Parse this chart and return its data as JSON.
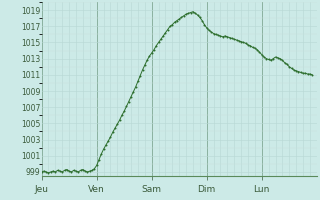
{
  "background_color": "#cceae7",
  "plot_bg_color": "#cceae7",
  "line_color": "#2d6e2d",
  "ylim": [
    998.5,
    1020.0
  ],
  "yticks": [
    999,
    1001,
    1003,
    1005,
    1007,
    1009,
    1011,
    1013,
    1015,
    1017,
    1019
  ],
  "day_labels": [
    "Jeu",
    "Ven",
    "Sam",
    "Dim",
    "Lun"
  ],
  "day_positions": [
    0,
    24,
    48,
    72,
    96
  ],
  "total_hours": 120,
  "pressure_data": [
    999.0,
    999.1,
    999.0,
    998.9,
    999.0,
    999.1,
    999.0,
    999.2,
    999.1,
    999.0,
    999.2,
    999.3,
    999.1,
    999.0,
    999.2,
    999.1,
    999.0,
    999.2,
    999.3,
    999.1,
    999.0,
    999.1,
    999.2,
    999.4,
    999.8,
    1000.5,
    1001.2,
    1001.8,
    1002.3,
    1002.8,
    1003.3,
    1003.9,
    1004.4,
    1004.9,
    1005.4,
    1006.0,
    1006.5,
    1007.1,
    1007.7,
    1008.3,
    1008.9,
    1009.5,
    1010.2,
    1010.9,
    1011.6,
    1012.2,
    1012.8,
    1013.3,
    1013.7,
    1014.1,
    1014.6,
    1015.0,
    1015.4,
    1015.8,
    1016.2,
    1016.6,
    1017.0,
    1017.2,
    1017.5,
    1017.7,
    1017.9,
    1018.1,
    1018.3,
    1018.5,
    1018.6,
    1018.7,
    1018.8,
    1018.6,
    1018.4,
    1018.1,
    1017.7,
    1017.2,
    1016.8,
    1016.5,
    1016.3,
    1016.1,
    1016.0,
    1015.9,
    1015.8,
    1015.7,
    1015.8,
    1015.7,
    1015.6,
    1015.5,
    1015.4,
    1015.3,
    1015.2,
    1015.1,
    1015.0,
    1014.9,
    1014.7,
    1014.6,
    1014.4,
    1014.3,
    1014.1,
    1013.8,
    1013.5,
    1013.2,
    1013.0,
    1012.9,
    1012.8,
    1013.0,
    1013.2,
    1013.1,
    1013.0,
    1012.8,
    1012.5,
    1012.3,
    1012.0,
    1011.8,
    1011.6,
    1011.5,
    1011.4,
    1011.3,
    1011.2,
    1011.2,
    1011.1,
    1011.1,
    1011.0
  ]
}
